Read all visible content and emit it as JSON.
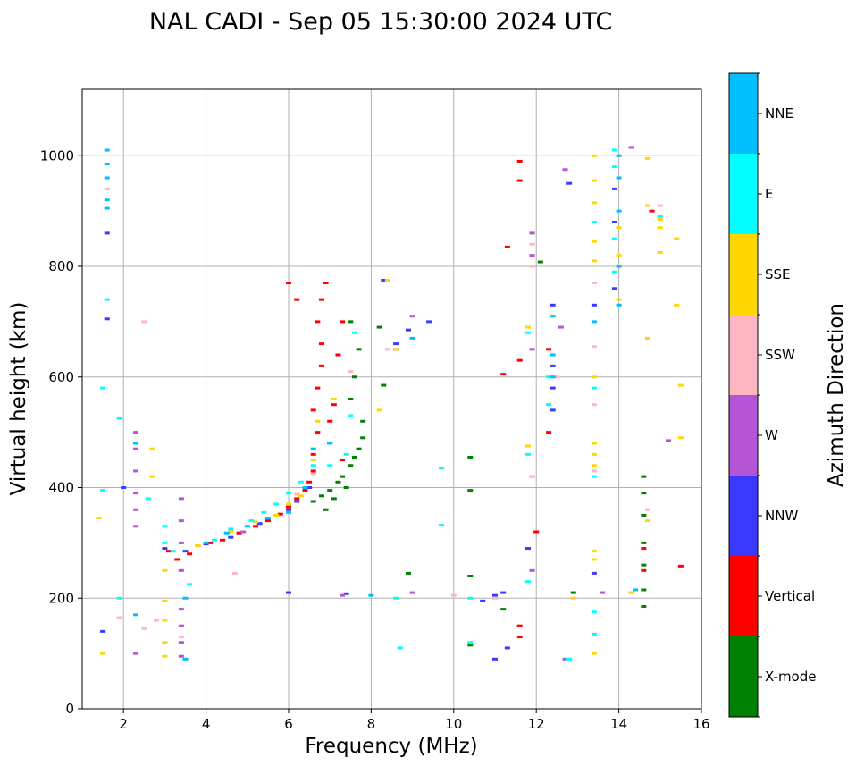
{
  "chart_data": {
    "type": "scatter",
    "title": "NAL CADI - Sep 05 15:30:00 2024 UTC",
    "xlabel": "Frequency (MHz)",
    "ylabel": "Virtual height (km)",
    "xlim": [
      1,
      16
    ],
    "ylim": [
      0,
      1120
    ],
    "xticks": [
      2,
      4,
      6,
      8,
      10,
      12,
      14,
      16
    ],
    "yticks": [
      0,
      200,
      400,
      600,
      800,
      1000
    ],
    "grid": true,
    "colorbar": {
      "label": "Azimuth Direction",
      "categories": [
        "X-mode",
        "Vertical",
        "NNW",
        "W",
        "SSW",
        "SSE",
        "E",
        "NNE"
      ],
      "colors": [
        "#008000",
        "#ff0000",
        "#3a3aff",
        "#b455d6",
        "#ffb6c1",
        "#ffd700",
        "#00ffff",
        "#00bfff"
      ]
    },
    "series": [
      {
        "name": "X-mode",
        "points": [
          [
            6.6,
            375
          ],
          [
            6.8,
            385
          ],
          [
            7.0,
            395
          ],
          [
            7.2,
            410
          ],
          [
            7.3,
            420
          ],
          [
            7.5,
            440
          ],
          [
            7.6,
            455
          ],
          [
            7.7,
            470
          ],
          [
            7.8,
            490
          ],
          [
            7.5,
            560
          ],
          [
            7.6,
            600
          ],
          [
            7.7,
            650
          ],
          [
            7.5,
            700
          ],
          [
            7.8,
            520
          ],
          [
            6.9,
            360
          ],
          [
            7.1,
            380
          ],
          [
            7.4,
            400
          ],
          [
            8.3,
            585
          ],
          [
            8.2,
            690
          ],
          [
            8.9,
            245
          ],
          [
            10.4,
            455
          ],
          [
            10.4,
            395
          ],
          [
            10.4,
            240
          ],
          [
            10.4,
            115
          ],
          [
            11.2,
            180
          ],
          [
            12.1,
            808
          ],
          [
            12.9,
            210
          ],
          [
            14.6,
            420
          ],
          [
            14.6,
            390
          ],
          [
            14.6,
            350
          ],
          [
            14.6,
            300
          ],
          [
            14.6,
            260
          ],
          [
            14.6,
            215
          ],
          [
            14.6,
            185
          ]
        ]
      },
      {
        "name": "Vertical",
        "points": [
          [
            3.1,
            285
          ],
          [
            3.3,
            270
          ],
          [
            3.6,
            280
          ],
          [
            3.8,
            295
          ],
          [
            4.1,
            300
          ],
          [
            4.4,
            305
          ],
          [
            4.8,
            318
          ],
          [
            5.2,
            330
          ],
          [
            5.5,
            340
          ],
          [
            5.8,
            352
          ],
          [
            6.0,
            365
          ],
          [
            6.2,
            380
          ],
          [
            6.4,
            395
          ],
          [
            6.5,
            410
          ],
          [
            6.6,
            430
          ],
          [
            6.6,
            460
          ],
          [
            6.7,
            500
          ],
          [
            6.6,
            540
          ],
          [
            6.7,
            580
          ],
          [
            6.8,
            620
          ],
          [
            6.8,
            660
          ],
          [
            6.7,
            700
          ],
          [
            6.8,
            740
          ],
          [
            6.9,
            770
          ],
          [
            7.0,
            480
          ],
          [
            7.1,
            550
          ],
          [
            7.2,
            640
          ],
          [
            7.3,
            700
          ],
          [
            6.2,
            740
          ],
          [
            6.0,
            770
          ],
          [
            7.0,
            520
          ],
          [
            7.3,
            450
          ],
          [
            11.3,
            835
          ],
          [
            11.6,
            990
          ],
          [
            11.6,
            955
          ],
          [
            11.6,
            630
          ],
          [
            11.2,
            605
          ],
          [
            11.6,
            150
          ],
          [
            11.6,
            130
          ],
          [
            12.0,
            320
          ],
          [
            12.3,
            650
          ],
          [
            12.3,
            500
          ],
          [
            14.6,
            290
          ],
          [
            14.6,
            250
          ],
          [
            14.8,
            900
          ],
          [
            15.5,
            258
          ]
        ]
      },
      {
        "name": "NNW",
        "points": [
          [
            3.0,
            290
          ],
          [
            3.5,
            285
          ],
          [
            4.0,
            298
          ],
          [
            4.6,
            310
          ],
          [
            5.3,
            335
          ],
          [
            6.0,
            360
          ],
          [
            6.2,
            375
          ],
          [
            6.5,
            400
          ],
          [
            6.0,
            210
          ],
          [
            7.4,
            208
          ],
          [
            8.6,
            660
          ],
          [
            8.9,
            685
          ],
          [
            9.4,
            700
          ],
          [
            8.3,
            775
          ],
          [
            10.7,
            195
          ],
          [
            11.0,
            205
          ],
          [
            11.2,
            210
          ],
          [
            11.0,
            90
          ],
          [
            11.3,
            110
          ],
          [
            11.8,
            290
          ],
          [
            12.4,
            730
          ],
          [
            12.4,
            620
          ],
          [
            12.4,
            580
          ],
          [
            12.4,
            540
          ],
          [
            12.8,
            950
          ],
          [
            13.4,
            730
          ],
          [
            13.4,
            245
          ],
          [
            13.9,
            940
          ],
          [
            13.9,
            880
          ],
          [
            13.9,
            760
          ],
          [
            1.6,
            860
          ],
          [
            1.6,
            705
          ],
          [
            2.0,
            400
          ],
          [
            1.5,
            140
          ]
        ]
      },
      {
        "name": "W",
        "points": [
          [
            2.3,
            500
          ],
          [
            2.3,
            470
          ],
          [
            2.3,
            430
          ],
          [
            2.3,
            390
          ],
          [
            2.3,
            360
          ],
          [
            2.3,
            330
          ],
          [
            2.3,
            100
          ],
          [
            3.4,
            380
          ],
          [
            3.4,
            340
          ],
          [
            3.4,
            300
          ],
          [
            3.4,
            250
          ],
          [
            3.4,
            180
          ],
          [
            3.4,
            150
          ],
          [
            3.4,
            120
          ],
          [
            3.4,
            95
          ],
          [
            4.9,
            320
          ],
          [
            7.3,
            205
          ],
          [
            8.6,
            650
          ],
          [
            9.0,
            710
          ],
          [
            9.0,
            210
          ],
          [
            11.9,
            860
          ],
          [
            11.9,
            820
          ],
          [
            11.9,
            650
          ],
          [
            11.9,
            420
          ],
          [
            11.9,
            250
          ],
          [
            12.6,
            690
          ],
          [
            12.7,
            975
          ],
          [
            12.7,
            90
          ],
          [
            13.6,
            210
          ],
          [
            14.3,
            1015
          ],
          [
            14.3,
            210
          ],
          [
            15.2,
            485
          ]
        ]
      },
      {
        "name": "SSW",
        "points": [
          [
            1.6,
            940
          ],
          [
            1.9,
            165
          ],
          [
            2.5,
            145
          ],
          [
            2.5,
            700
          ],
          [
            2.8,
            160
          ],
          [
            3.4,
            130
          ],
          [
            4.7,
            245
          ],
          [
            5.5,
            345
          ],
          [
            6.2,
            388
          ],
          [
            6.6,
            425
          ],
          [
            7.5,
            610
          ],
          [
            8.4,
            650
          ],
          [
            10.0,
            205
          ],
          [
            11.0,
            200
          ],
          [
            11.9,
            800
          ],
          [
            11.9,
            840
          ],
          [
            11.9,
            420
          ],
          [
            12.5,
            600
          ],
          [
            13.4,
            770
          ],
          [
            13.4,
            655
          ],
          [
            13.4,
            550
          ],
          [
            13.4,
            430
          ],
          [
            14.7,
            360
          ],
          [
            14.7,
            670
          ],
          [
            15.0,
            910
          ]
        ]
      },
      {
        "name": "SSE",
        "points": [
          [
            1.4,
            345
          ],
          [
            1.5,
            100
          ],
          [
            2.7,
            470
          ],
          [
            2.7,
            420
          ],
          [
            3.0,
            250
          ],
          [
            3.0,
            195
          ],
          [
            3.0,
            160
          ],
          [
            3.0,
            120
          ],
          [
            3.0,
            95
          ],
          [
            3.8,
            295
          ],
          [
            4.6,
            320
          ],
          [
            5.2,
            338
          ],
          [
            5.7,
            350
          ],
          [
            6.0,
            370
          ],
          [
            6.3,
            385
          ],
          [
            6.6,
            450
          ],
          [
            6.7,
            520
          ],
          [
            7.1,
            560
          ],
          [
            8.4,
            775
          ],
          [
            8.6,
            650
          ],
          [
            8.2,
            540
          ],
          [
            11.8,
            690
          ],
          [
            11.8,
            475
          ],
          [
            12.9,
            200
          ],
          [
            13.4,
            1000
          ],
          [
            13.4,
            955
          ],
          [
            13.4,
            915
          ],
          [
            13.4,
            845
          ],
          [
            13.4,
            810
          ],
          [
            13.4,
            600
          ],
          [
            13.4,
            480
          ],
          [
            13.4,
            460
          ],
          [
            13.4,
            440
          ],
          [
            13.4,
            285
          ],
          [
            13.4,
            270
          ],
          [
            13.4,
            100
          ],
          [
            14.0,
            740
          ],
          [
            14.0,
            820
          ],
          [
            14.0,
            870
          ],
          [
            14.3,
            210
          ],
          [
            14.7,
            995
          ],
          [
            14.7,
            910
          ],
          [
            14.7,
            670
          ],
          [
            14.7,
            340
          ],
          [
            15.0,
            885
          ],
          [
            15.0,
            870
          ],
          [
            15.0,
            825
          ],
          [
            15.4,
            850
          ],
          [
            15.4,
            730
          ],
          [
            15.5,
            585
          ],
          [
            15.5,
            490
          ]
        ]
      },
      {
        "name": "E",
        "points": [
          [
            1.5,
            395
          ],
          [
            1.5,
            580
          ],
          [
            1.6,
            740
          ],
          [
            1.9,
            525
          ],
          [
            1.9,
            200
          ],
          [
            2.6,
            380
          ],
          [
            3.0,
            330
          ],
          [
            3.0,
            300
          ],
          [
            3.2,
            285
          ],
          [
            3.6,
            225
          ],
          [
            4.2,
            305
          ],
          [
            4.6,
            325
          ],
          [
            5.1,
            340
          ],
          [
            5.4,
            355
          ],
          [
            5.7,
            370
          ],
          [
            6.0,
            390
          ],
          [
            6.3,
            410
          ],
          [
            6.6,
            440
          ],
          [
            7.0,
            440
          ],
          [
            7.4,
            460
          ],
          [
            7.5,
            530
          ],
          [
            7.6,
            680
          ],
          [
            8.6,
            200
          ],
          [
            8.7,
            110
          ],
          [
            9.7,
            435
          ],
          [
            9.7,
            332
          ],
          [
            10.4,
            200
          ],
          [
            10.4,
            120
          ],
          [
            11.8,
            680
          ],
          [
            11.8,
            460
          ],
          [
            11.8,
            230
          ],
          [
            12.3,
            600
          ],
          [
            12.3,
            550
          ],
          [
            12.8,
            90
          ],
          [
            13.4,
            880
          ],
          [
            13.4,
            580
          ],
          [
            13.4,
            420
          ],
          [
            13.4,
            175
          ],
          [
            13.4,
            135
          ],
          [
            13.9,
            1010
          ],
          [
            13.9,
            980
          ],
          [
            13.9,
            850
          ],
          [
            13.9,
            790
          ],
          [
            15.0,
            890
          ]
        ]
      },
      {
        "name": "NNE",
        "points": [
          [
            1.6,
            1010
          ],
          [
            1.6,
            985
          ],
          [
            1.6,
            960
          ],
          [
            1.6,
            920
          ],
          [
            1.6,
            905
          ],
          [
            2.3,
            480
          ],
          [
            2.3,
            170
          ],
          [
            3.5,
            200
          ],
          [
            3.5,
            90
          ],
          [
            4.0,
            300
          ],
          [
            4.5,
            318
          ],
          [
            5.0,
            330
          ],
          [
            5.5,
            345
          ],
          [
            6.0,
            355
          ],
          [
            6.4,
            400
          ],
          [
            6.6,
            470
          ],
          [
            7.0,
            480
          ],
          [
            8.0,
            205
          ],
          [
            9.0,
            670
          ],
          [
            12.4,
            710
          ],
          [
            12.4,
            640
          ],
          [
            12.4,
            600
          ],
          [
            13.4,
            700
          ],
          [
            14.0,
            1000
          ],
          [
            14.0,
            960
          ],
          [
            14.0,
            900
          ],
          [
            14.0,
            800
          ],
          [
            14.0,
            730
          ],
          [
            14.4,
            215
          ]
        ]
      }
    ]
  }
}
